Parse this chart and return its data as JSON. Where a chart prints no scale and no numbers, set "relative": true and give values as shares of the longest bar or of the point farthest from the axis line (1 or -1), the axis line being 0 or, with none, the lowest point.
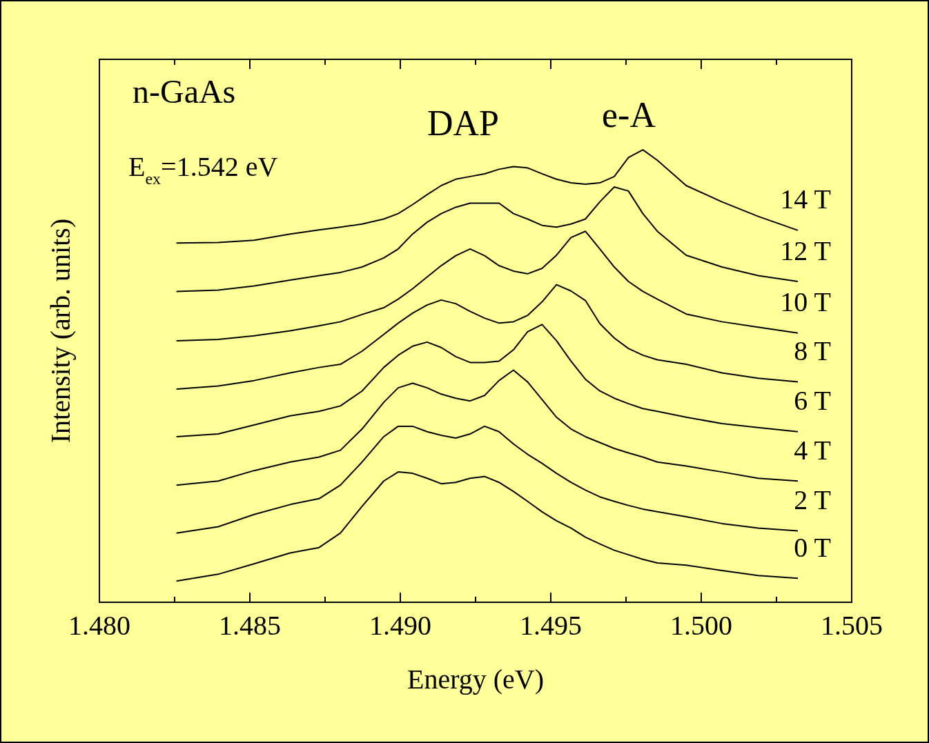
{
  "chart_data": {
    "type": "line",
    "xlabel": "Energy (eV)",
    "ylabel": "Intensity (arb. units)",
    "relative": true,
    "grid": false,
    "legend": false,
    "marker": "none",
    "line_style": "solid",
    "annotations": [
      "n-GaAs",
      "E$_{ex}$=1.542 eV",
      "DAP",
      "e-A"
    ],
    "xlim": [
      1.48,
      1.505
    ],
    "xticks": [
      {
        "value": 1.48,
        "label": "1.480"
      },
      {
        "value": 1.4825,
        "label": null
      },
      {
        "value": 1.485,
        "label": "1.485"
      },
      {
        "value": 1.4875,
        "label": null
      },
      {
        "value": 1.49,
        "label": "1.490"
      },
      {
        "value": 1.4925,
        "label": null
      },
      {
        "value": 1.495,
        "label": "1.495"
      },
      {
        "value": 1.4975,
        "label": null
      },
      {
        "value": 1.5,
        "label": "1.500"
      },
      {
        "value": 1.5025,
        "label": null
      },
      {
        "value": 1.505,
        "label": "1.505"
      }
    ],
    "x": [
      1.48256,
      1.48395,
      1.48514,
      1.48634,
      1.4873,
      1.48801,
      1.48873,
      1.48945,
      1.48993,
      1.49041,
      1.49089,
      1.49136,
      1.49184,
      1.49232,
      1.4928,
      1.49328,
      1.49376,
      1.49423,
      1.49471,
      1.49519,
      1.49567,
      1.49615,
      1.49663,
      1.49711,
      1.49758,
      1.49806,
      1.49854,
      1.4995,
      1.50069,
      1.50189,
      1.50321
    ],
    "series": [
      {
        "name": "0 T",
        "color": "#000000",
        "values": [
          0.047,
          0.062,
          0.085,
          0.109,
          0.121,
          0.153,
          0.212,
          0.268,
          0.288,
          0.285,
          0.274,
          0.262,
          0.265,
          0.274,
          0.278,
          0.265,
          0.245,
          0.223,
          0.2,
          0.18,
          0.164,
          0.144,
          0.129,
          0.115,
          0.105,
          0.095,
          0.087,
          0.082,
          0.07,
          0.059,
          0.053
        ]
      },
      {
        "name": "2 T",
        "color": "#000000",
        "values": [
          0.153,
          0.167,
          0.194,
          0.216,
          0.229,
          0.259,
          0.31,
          0.366,
          0.389,
          0.389,
          0.377,
          0.369,
          0.363,
          0.372,
          0.389,
          0.377,
          0.35,
          0.327,
          0.307,
          0.285,
          0.265,
          0.248,
          0.233,
          0.223,
          0.214,
          0.206,
          0.2,
          0.189,
          0.174,
          0.164,
          0.158
        ]
      },
      {
        "name": "4 T",
        "color": "#000000",
        "values": [
          0.259,
          0.268,
          0.291,
          0.31,
          0.321,
          0.336,
          0.383,
          0.442,
          0.474,
          0.484,
          0.474,
          0.46,
          0.451,
          0.445,
          0.457,
          0.49,
          0.513,
          0.487,
          0.448,
          0.409,
          0.383,
          0.366,
          0.353,
          0.34,
          0.33,
          0.321,
          0.31,
          0.301,
          0.288,
          0.274,
          0.268
        ]
      },
      {
        "name": "6 T",
        "color": "#000000",
        "values": [
          0.366,
          0.372,
          0.392,
          0.412,
          0.422,
          0.434,
          0.467,
          0.519,
          0.546,
          0.566,
          0.575,
          0.563,
          0.543,
          0.53,
          0.53,
          0.533,
          0.558,
          0.598,
          0.614,
          0.578,
          0.533,
          0.493,
          0.467,
          0.451,
          0.439,
          0.428,
          0.422,
          0.409,
          0.395,
          0.386,
          0.377
        ]
      },
      {
        "name": "8 T",
        "color": "#000000",
        "values": [
          0.471,
          0.478,
          0.49,
          0.507,
          0.519,
          0.526,
          0.555,
          0.592,
          0.617,
          0.639,
          0.657,
          0.668,
          0.66,
          0.643,
          0.628,
          0.617,
          0.62,
          0.634,
          0.664,
          0.702,
          0.688,
          0.667,
          0.616,
          0.584,
          0.561,
          0.546,
          0.536,
          0.526,
          0.507,
          0.495,
          0.487
        ]
      },
      {
        "name": "10 T",
        "color": "#000000",
        "values": [
          0.578,
          0.581,
          0.589,
          0.6,
          0.611,
          0.62,
          0.636,
          0.651,
          0.67,
          0.693,
          0.719,
          0.744,
          0.766,
          0.781,
          0.766,
          0.744,
          0.732,
          0.726,
          0.738,
          0.767,
          0.806,
          0.82,
          0.781,
          0.741,
          0.709,
          0.687,
          0.67,
          0.637,
          0.62,
          0.608,
          0.595
        ]
      },
      {
        "name": "12 T",
        "color": "#000000",
        "values": [
          0.687,
          0.69,
          0.699,
          0.712,
          0.722,
          0.729,
          0.741,
          0.761,
          0.781,
          0.814,
          0.84,
          0.859,
          0.873,
          0.882,
          0.882,
          0.882,
          0.859,
          0.847,
          0.833,
          0.829,
          0.836,
          0.847,
          0.885,
          0.918,
          0.909,
          0.859,
          0.82,
          0.767,
          0.741,
          0.722,
          0.709
        ]
      },
      {
        "name": "14 T",
        "color": "#000000",
        "values": [
          0.794,
          0.795,
          0.8,
          0.814,
          0.823,
          0.829,
          0.836,
          0.847,
          0.859,
          0.879,
          0.901,
          0.921,
          0.935,
          0.941,
          0.947,
          0.957,
          0.963,
          0.96,
          0.947,
          0.935,
          0.927,
          0.924,
          0.927,
          0.941,
          0.983,
          1,
          0.977,
          0.921,
          0.885,
          0.853,
          0.822
        ]
      }
    ]
  }
}
